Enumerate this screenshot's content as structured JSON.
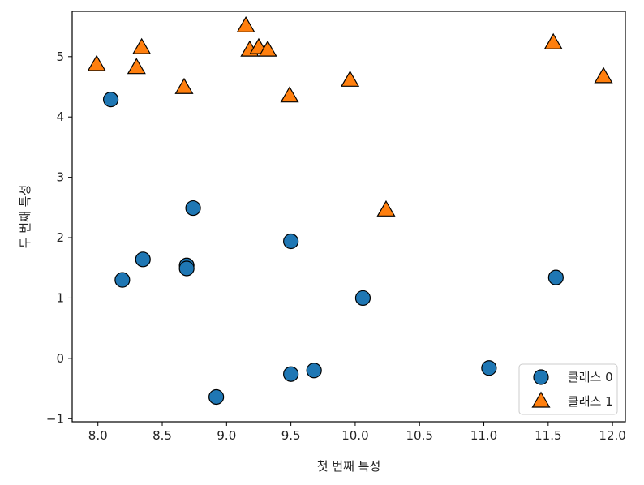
{
  "chart_data": {
    "type": "scatter",
    "xlabel": "첫 번째 특성",
    "ylabel": "두 번째 특성",
    "xlim": [
      7.8,
      12.1
    ],
    "ylim": [
      -1.05,
      5.75
    ],
    "xticks": [
      "8.0",
      "8.5",
      "9.0",
      "9.5",
      "10.0",
      "10.5",
      "11.0",
      "11.5",
      "12.0"
    ],
    "yticks": [
      "−1",
      "0",
      "1",
      "2",
      "3",
      "4",
      "5"
    ],
    "grid": false,
    "legend_position": "lower-right",
    "series": [
      {
        "name": "클래스 0",
        "marker": "circle",
        "color": "#1f77b4",
        "x": [
          8.1,
          8.19,
          8.35,
          8.69,
          8.69,
          8.74,
          8.92,
          9.5,
          9.5,
          9.68,
          10.06,
          11.04,
          11.56
        ],
        "y": [
          4.29,
          1.3,
          1.64,
          1.54,
          1.49,
          2.49,
          -0.64,
          1.94,
          -0.26,
          -0.2,
          1.0,
          -0.16,
          1.34
        ]
      },
      {
        "name": "클래스 1",
        "marker": "triangle",
        "color": "#ff7f0e",
        "x": [
          7.99,
          8.3,
          8.34,
          8.67,
          9.15,
          9.18,
          9.25,
          9.32,
          9.49,
          9.96,
          10.24,
          11.54,
          11.93
        ],
        "y": [
          4.85,
          4.8,
          5.13,
          4.47,
          5.49,
          5.09,
          5.13,
          5.09,
          4.33,
          4.59,
          2.44,
          5.21,
          4.65
        ]
      }
    ]
  }
}
